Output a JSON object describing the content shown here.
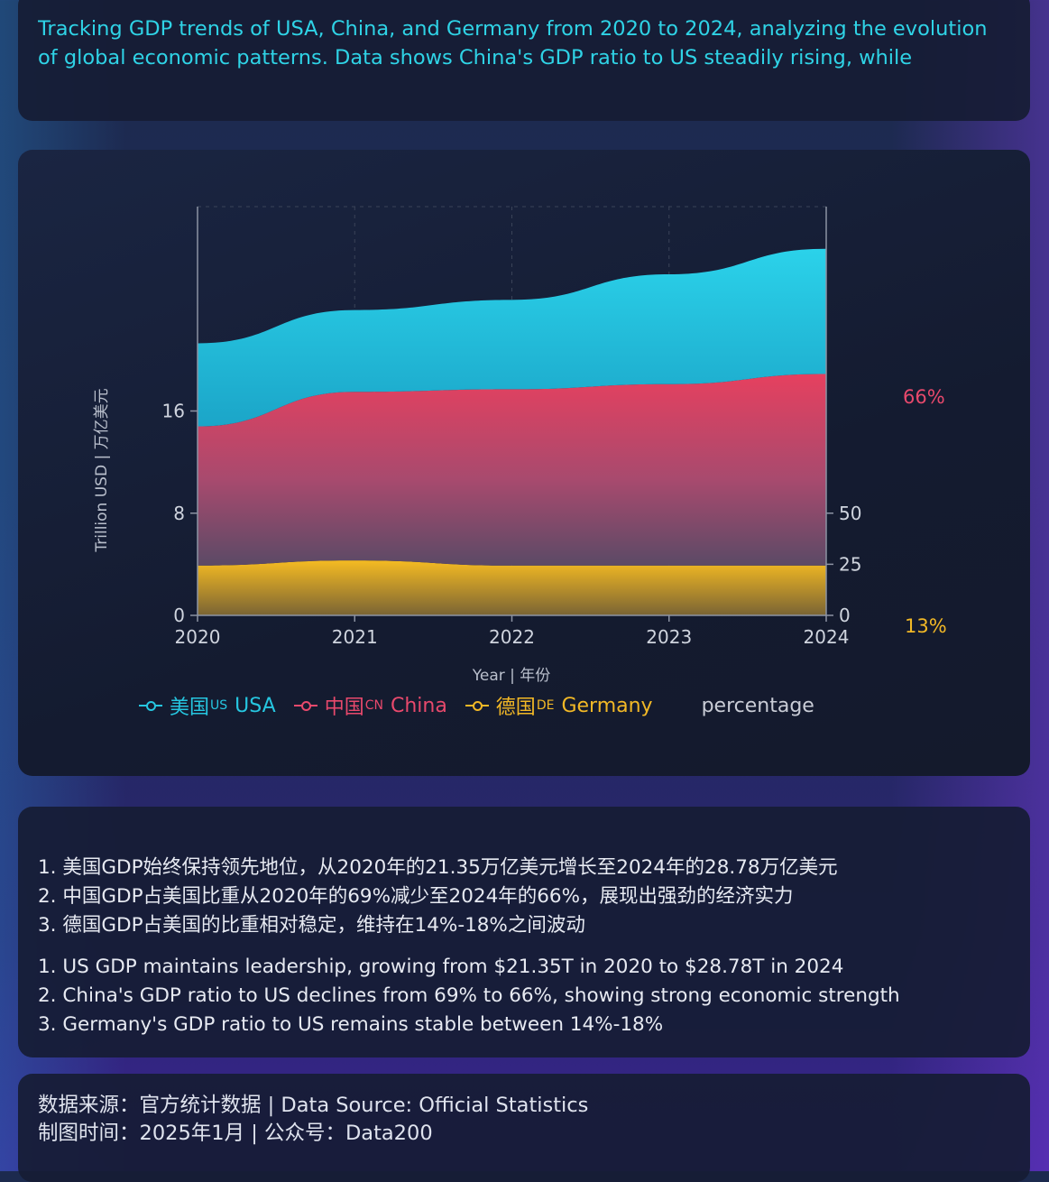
{
  "intro": "Tracking GDP trends of USA, China, and Germany from 2020 to 2024, analyzing the evolution of global economic patterns. Data shows China's GDP ratio to US steadily rising, while Germany",
  "colors": {
    "usa": "#26c6e0",
    "china": "#e0436a",
    "germany": "#f2b826",
    "background": "#141b30"
  },
  "chart_data": {
    "type": "area",
    "stacked": true,
    "x": [
      2020,
      2021,
      2022,
      2023,
      2024
    ],
    "xlabel": "Year | 年份",
    "ylabel": "Trillion USD | 万亿美元",
    "y_ticks": [
      "0",
      "8",
      "16"
    ],
    "y2_ticks": [
      "0",
      "25",
      "50"
    ],
    "x_ticks": [
      "2020",
      "2021",
      "2022",
      "2023",
      "2024"
    ],
    "ylim": [
      0,
      32
    ],
    "y2lim": [
      0,
      100
    ],
    "grid": true,
    "legend_placement": "bottom",
    "series": [
      {
        "name": "美国US USA",
        "values": [
          6.5,
          6.4,
          7.0,
          8.6,
          9.8
        ]
      },
      {
        "name": "中国CN China",
        "values": [
          10.9,
          13.2,
          13.8,
          14.2,
          15.0
        ]
      },
      {
        "name": "德国DE Germany",
        "values": [
          3.9,
          4.3,
          3.9,
          3.9,
          3.9
        ]
      }
    ],
    "legend": [
      {
        "prefix": "美国",
        "code": "US",
        "name": "USA"
      },
      {
        "prefix": "中国",
        "code": "CN",
        "name": "China"
      },
      {
        "prefix": "德国",
        "code": "DE",
        "name": "Germany"
      }
    ],
    "legend_extra": "percentage",
    "annotations": {
      "china_pct": "66%",
      "germany_pct": "13%"
    }
  },
  "notes_cn": [
    "1. 美国GDP始终保持领先地位，从2020年的21.35万亿美元增长至2024年的28.78万亿美元",
    "2. 中国GDP占美国比重从2020年的69%减少至2024年的66%，展现出强劲的经济实力",
    "3. 德国GDP占美国的比重相对稳定，维持在14%-18%之间波动"
  ],
  "notes_en": [
    "1. US GDP maintains leadership, growing from $21.35T in 2020 to $28.78T in 2024",
    "2. China's GDP ratio to US declines from 69% to 66%, showing strong economic strength",
    "3. Germany's GDP ratio to US remains stable between 14%-18%"
  ],
  "footer": {
    "source": "数据来源：官方统计数据 | Data Source: Official Statistics",
    "date": "制图时间：2025年1月 | 公众号：Data200"
  }
}
